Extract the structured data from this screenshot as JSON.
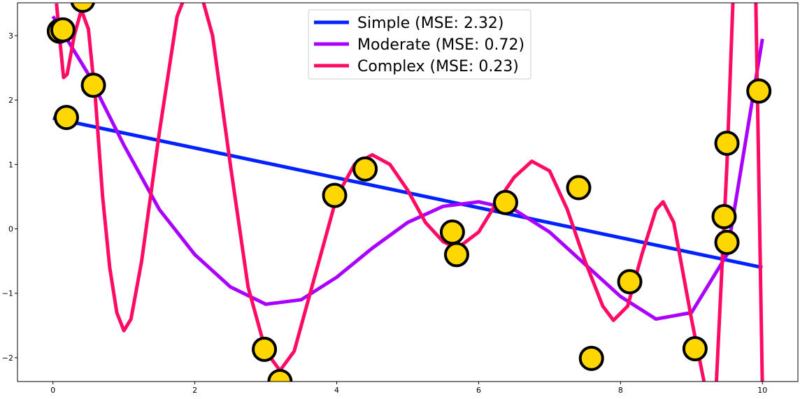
{
  "chart_data": {
    "type": "line",
    "xlim": [
      -0.5,
      10.5
    ],
    "ylim": [
      -2.37,
      3.51
    ],
    "xticks": [
      0,
      2,
      4,
      6,
      8,
      10
    ],
    "yticks": [
      {
        "value": -2,
        "label": "−2"
      },
      {
        "value": -1,
        "label": "−1"
      },
      0,
      1,
      2,
      3
    ],
    "legend": "upper center",
    "series": [
      {
        "name": "Simple (MSE: 2.32)",
        "color": "#0022ff",
        "x": [
          0,
          10
        ],
        "values": [
          1.72,
          -0.6
        ]
      },
      {
        "name": "Moderate (MSE: 0.72)",
        "color": "#aa00ff",
        "x": [
          0,
          0.5,
          1,
          1.5,
          2,
          2.5,
          3,
          3.5,
          4,
          4.5,
          5,
          5.5,
          6,
          6.5,
          7,
          7.5,
          8,
          8.5,
          9,
          9.5,
          10
        ],
        "values": [
          3.3,
          2.4,
          1.3,
          0.3,
          -0.4,
          -0.9,
          -1.17,
          -1.1,
          -0.75,
          -0.3,
          0.1,
          0.35,
          0.42,
          0.3,
          -0.05,
          -0.55,
          -1.05,
          -1.4,
          -1.3,
          -0.4,
          2.95
        ]
      },
      {
        "name": "Complex (MSE: 0.23)",
        "color": "#ff0a64",
        "x": [
          0.05,
          0.1,
          0.15,
          0.2,
          0.3,
          0.4,
          0.5,
          0.6,
          0.7,
          0.8,
          0.9,
          1.0,
          1.1,
          1.25,
          1.5,
          1.75,
          2.0,
          2.25,
          2.5,
          2.75,
          3.0,
          3.2,
          3.4,
          3.75,
          4.0,
          4.25,
          4.5,
          4.75,
          5.0,
          5.25,
          5.5,
          5.7,
          6.0,
          6.25,
          6.5,
          6.75,
          7.0,
          7.25,
          7.5,
          7.75,
          7.9,
          8.1,
          8.3,
          8.5,
          8.6,
          8.75,
          9.0,
          9.2,
          9.35,
          9.5,
          9.6,
          9.9,
          10.0
        ],
        "values": [
          3.5,
          2.9,
          2.35,
          2.4,
          3.0,
          3.4,
          3.1,
          2.0,
          0.5,
          -0.6,
          -1.3,
          -1.58,
          -1.4,
          -0.5,
          1.5,
          3.3,
          4.0,
          3.0,
          1.0,
          -0.9,
          -1.9,
          -2.2,
          -1.9,
          -0.5,
          0.5,
          1.0,
          1.15,
          1.0,
          0.6,
          0.1,
          -0.2,
          -0.3,
          -0.05,
          0.4,
          0.8,
          1.05,
          0.9,
          0.3,
          -0.5,
          -1.2,
          -1.42,
          -1.2,
          -0.4,
          0.3,
          0.42,
          0.1,
          -1.4,
          -2.5,
          -2.4,
          1.0,
          4.0,
          4.0,
          -2.5
        ]
      }
    ],
    "scatter": {
      "color": "#ffd700",
      "edgecolor": "#000000",
      "x": [
        0.09,
        0.14,
        0.42,
        0.57,
        0.19,
        2.98,
        3.2,
        3.97,
        4.4,
        5.63,
        5.69,
        6.38,
        7.41,
        7.59,
        8.13,
        9.05,
        9.5,
        9.46,
        9.5,
        9.95
      ],
      "values": [
        3.07,
        3.09,
        3.55,
        2.23,
        1.73,
        -1.87,
        -2.37,
        0.52,
        0.93,
        -0.05,
        -0.4,
        0.41,
        0.64,
        -2.01,
        -0.82,
        -1.86,
        1.33,
        0.19,
        -0.21,
        2.14
      ]
    }
  }
}
